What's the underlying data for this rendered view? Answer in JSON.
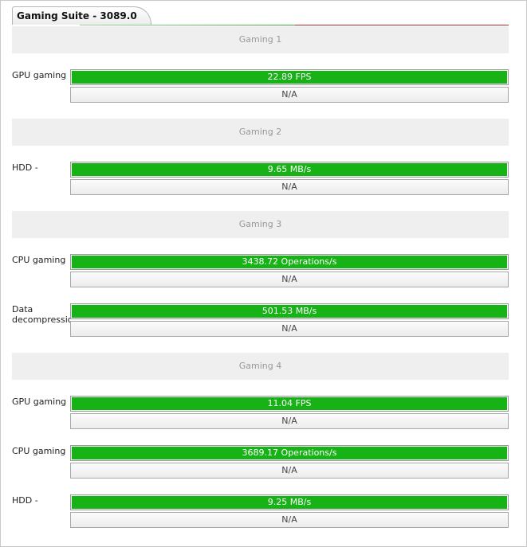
{
  "tab": {
    "title": "Gaming Suite - 3089.0"
  },
  "colors": {
    "bar_fill": "#16b216",
    "section_bg": "#efefef",
    "accent_red": "#b02a2a"
  },
  "sections": [
    {
      "title": "Gaming 1"
    },
    {
      "title": "Gaming 2"
    },
    {
      "title": "Gaming 3"
    },
    {
      "title": "Gaming 4"
    }
  ],
  "rows": [
    {
      "label": "GPU gaming",
      "value": "22.89 FPS",
      "fill": 1.0,
      "secondary": "N/A"
    },
    {
      "label": "HDD - gaming",
      "value": "9.65 MB/s",
      "fill": 1.0,
      "secondary": "N/A"
    },
    {
      "label": "CPU gaming",
      "value": "3438.72 Operations/s",
      "fill": 1.0,
      "secondary": "N/A"
    },
    {
      "label": "Data decompression",
      "value": "501.53 MB/s",
      "fill": 1.0,
      "secondary": "N/A"
    },
    {
      "label": "GPU gaming",
      "value": "11.04 FPS",
      "fill": 1.0,
      "secondary": "N/A"
    },
    {
      "label": "CPU gaming",
      "value": "3689.17 Operations/s",
      "fill": 1.0,
      "secondary": "N/A"
    },
    {
      "label": "HDD - gaming",
      "value": "9.25 MB/s",
      "fill": 1.0,
      "secondary": "N/A"
    }
  ]
}
